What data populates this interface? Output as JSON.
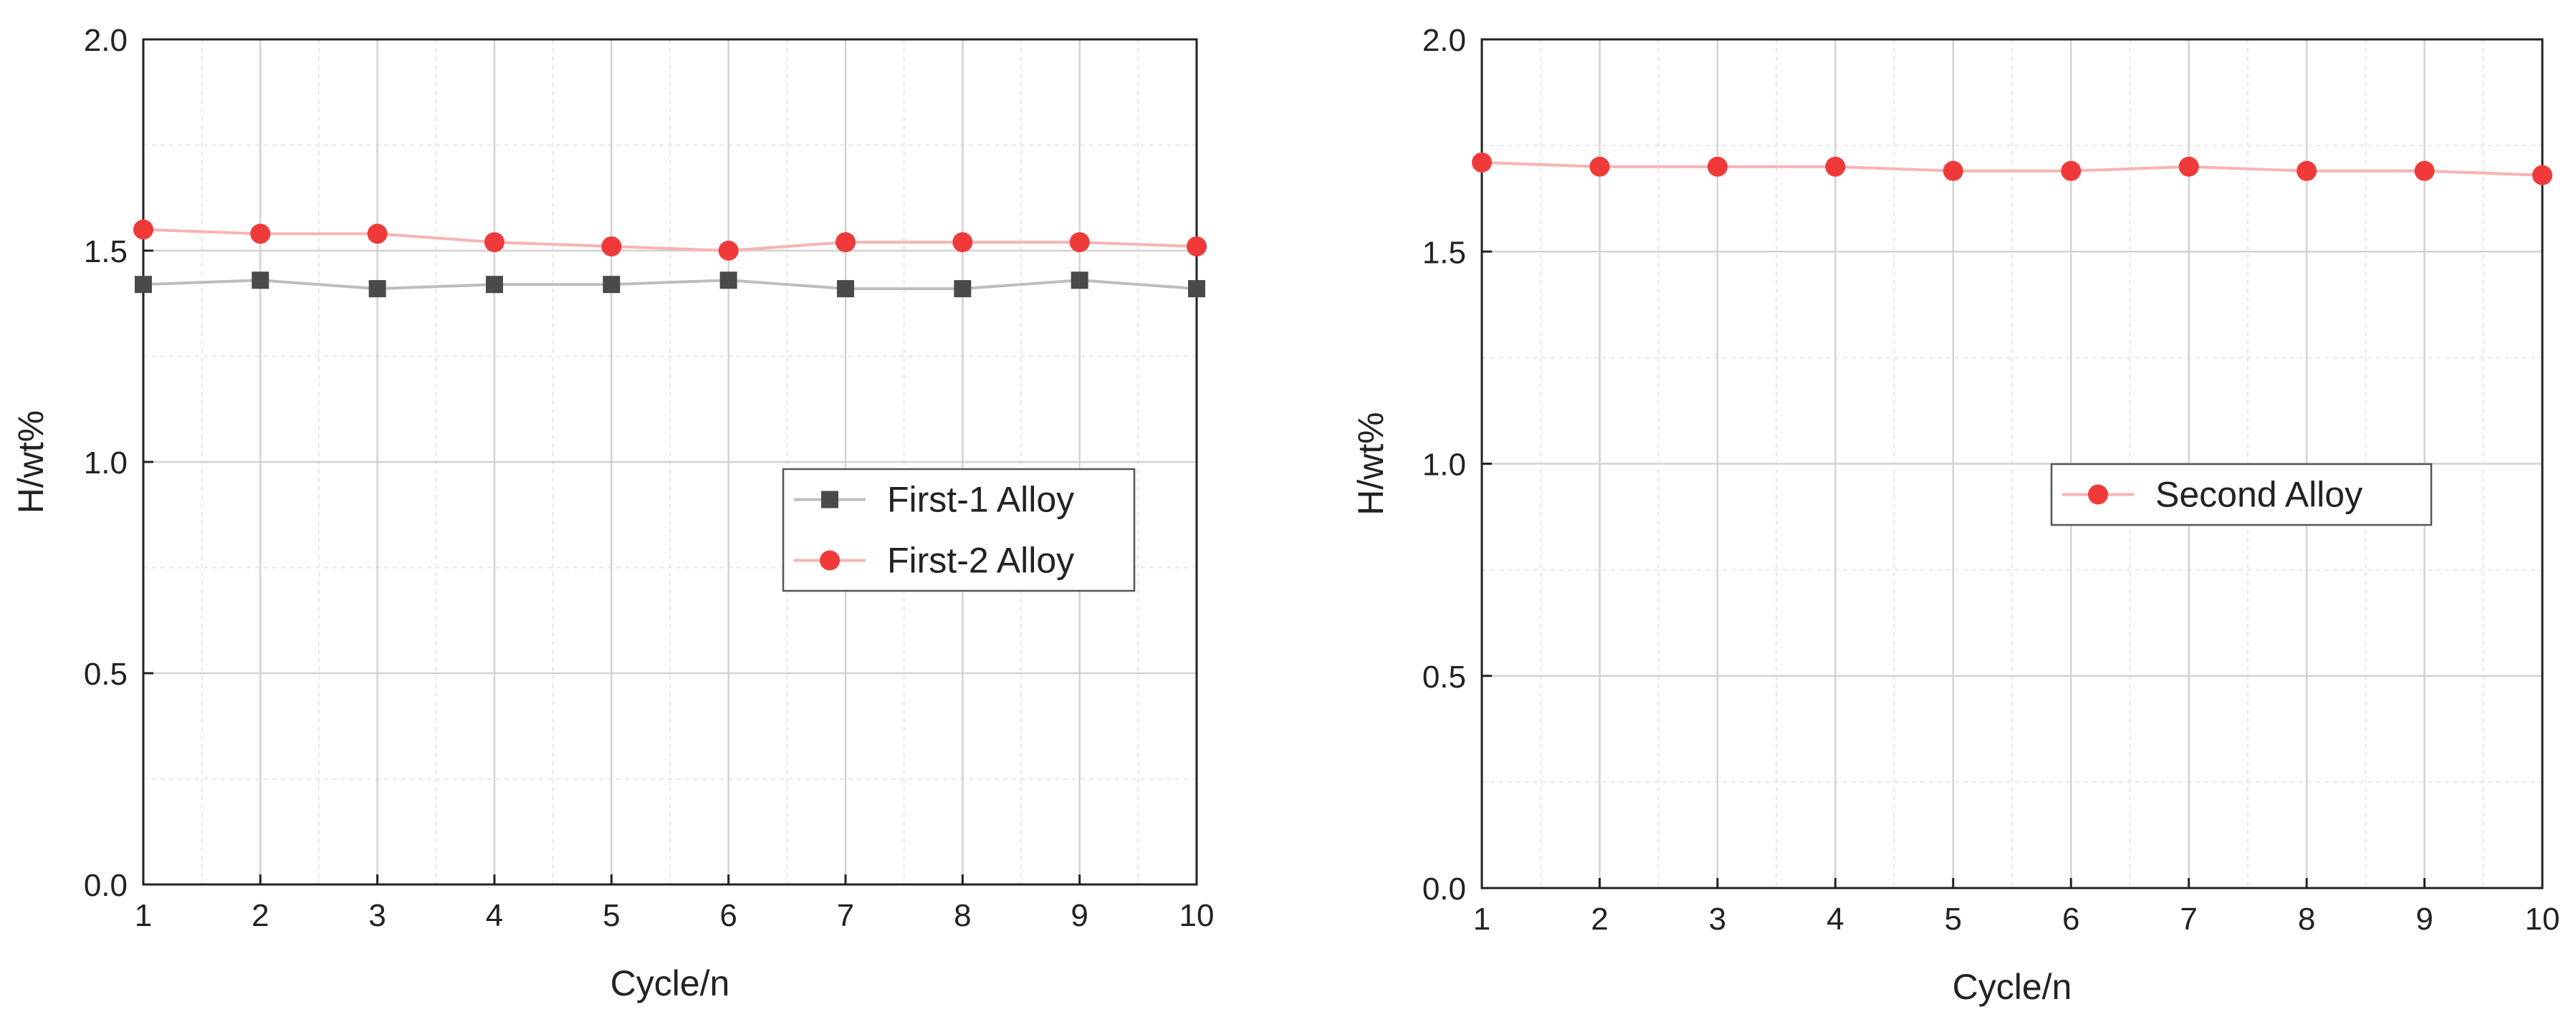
{
  "chart_data": [
    {
      "type": "line",
      "x": [
        1,
        2,
        3,
        4,
        5,
        6,
        7,
        8,
        9,
        10
      ],
      "xlabel": "Cycle/n",
      "ylabel": "H/wt%",
      "xlim": [
        1,
        10
      ],
      "ylim": [
        0.0,
        2.0
      ],
      "xticks": [
        "1",
        "2",
        "3",
        "4",
        "5",
        "6",
        "7",
        "8",
        "9",
        "10"
      ],
      "yticks": [
        "0.0",
        "0.5",
        "1.0",
        "1.5",
        "2.0"
      ],
      "grid": true,
      "legend_position": "center-right",
      "series": [
        {
          "name": "First-1 Alloy",
          "marker": "square",
          "color": "#4a4a4a",
          "line_color": "#bdbdbd",
          "values": [
            1.42,
            1.43,
            1.41,
            1.42,
            1.42,
            1.43,
            1.41,
            1.41,
            1.43,
            1.41
          ]
        },
        {
          "name": "First-2 Alloy",
          "marker": "circle",
          "color": "#f03a3a",
          "line_color": "#f7b3b3",
          "values": [
            1.55,
            1.54,
            1.54,
            1.52,
            1.51,
            1.5,
            1.52,
            1.52,
            1.52,
            1.51
          ]
        }
      ]
    },
    {
      "type": "line",
      "x": [
        1,
        2,
        3,
        4,
        5,
        6,
        7,
        8,
        9,
        10
      ],
      "xlabel": "Cycle/n",
      "ylabel": "H/wt%",
      "xlim": [
        1,
        10
      ],
      "ylim": [
        0.0,
        2.0
      ],
      "xticks": [
        "1",
        "2",
        "3",
        "4",
        "5",
        "6",
        "7",
        "8",
        "9",
        "10"
      ],
      "yticks": [
        "0.0",
        "0.5",
        "1.0",
        "1.5",
        "2.0"
      ],
      "grid": true,
      "legend_position": "center-right",
      "series": [
        {
          "name": "Second Alloy",
          "marker": "circle",
          "color": "#f03a3a",
          "line_color": "#f7b3b3",
          "values": [
            1.71,
            1.7,
            1.7,
            1.7,
            1.69,
            1.69,
            1.7,
            1.69,
            1.69,
            1.68
          ]
        }
      ]
    }
  ]
}
